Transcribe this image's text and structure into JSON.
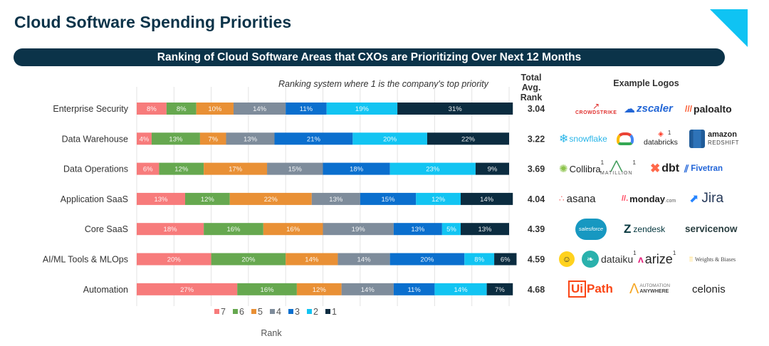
{
  "header": {
    "title": "Cloud Software Spending Priorities",
    "banner": "Ranking of Cloud Software Areas that CXOs are Prioritizing  Over Next 12 Months",
    "subtitle": "Ranking system where  1 is the company's top priority",
    "col_rank": "Total Avg. Rank",
    "col_logos": "Example Logos",
    "accent_color": "#0fc3f3",
    "banner_color": "#0b3349"
  },
  "chart_data": {
    "type": "bar",
    "orientation": "horizontal",
    "stacked": "100%",
    "title": "Ranking of Cloud Software Areas that CXOs are Prioritizing Over Next 12 Months",
    "subtitle": "Ranking system where 1 is the company's top priority",
    "xlabel": "Rank",
    "xlim": [
      0,
      100
    ],
    "grid": "vertical",
    "legend": "bottom",
    "categories": [
      "Enterprise Security",
      "Data Warehouse",
      "Data Operations",
      "Application SaaS",
      "Core SaaS",
      "AI/ML Tools & MLOps",
      "Automation"
    ],
    "series": [
      {
        "name": "7",
        "color": "#f77b7b",
        "values": [
          8,
          4,
          6,
          13,
          18,
          20,
          27
        ]
      },
      {
        "name": "6",
        "color": "#66a84f",
        "values": [
          8,
          13,
          12,
          12,
          16,
          20,
          16
        ]
      },
      {
        "name": "5",
        "color": "#e99035",
        "values": [
          10,
          7,
          17,
          22,
          16,
          14,
          12
        ]
      },
      {
        "name": "4",
        "color": "#7e8c9b",
        "values": [
          14,
          13,
          15,
          13,
          19,
          14,
          14
        ]
      },
      {
        "name": "3",
        "color": "#0a6fce",
        "values": [
          11,
          21,
          18,
          15,
          13,
          20,
          11
        ]
      },
      {
        "name": "2",
        "color": "#12c4f2",
        "values": [
          19,
          20,
          23,
          12,
          5,
          8,
          14
        ]
      },
      {
        "name": "1",
        "color": "#0b2c40",
        "values": [
          31,
          22,
          9,
          14,
          13,
          6,
          7
        ]
      }
    ],
    "avg_rank": [
      "3.04",
      "3.22",
      "3.69",
      "4.04",
      "4.39",
      "4.59",
      "4.68"
    ]
  },
  "logos": [
    [
      {
        "name": "CrowdStrike",
        "text": "CROWDSTRIKE",
        "color": "#e0312f"
      },
      {
        "name": "Zscaler",
        "text": "zscaler",
        "color": "#2266d6"
      },
      {
        "name": "Palo Alto Networks",
        "text": "paloalto",
        "color": "#222222"
      }
    ],
    [
      {
        "name": "Snowflake",
        "text": "snowflake",
        "color": "#29b5e8"
      },
      {
        "name": "Google Cloud",
        "text": "",
        "color": "#4285f4"
      },
      {
        "name": "Databricks",
        "text": "databricks",
        "sup": "1",
        "color": "#222222"
      },
      {
        "name": "Amazon Redshift",
        "text": "amazon",
        "subtext": "REDSHIFT",
        "color": "#2e73b8"
      }
    ],
    [
      {
        "name": "Collibra",
        "text": "Collibra",
        "sup": "1",
        "color": "#222222"
      },
      {
        "name": "Matillion",
        "text": "MATILLION",
        "sup": "1",
        "color": "#3f9c5a"
      },
      {
        "name": "dbt",
        "text": "dbt",
        "color": "#222222"
      },
      {
        "name": "Fivetran",
        "text": "Fivetran",
        "color": "#1f63d8"
      }
    ],
    [
      {
        "name": "Asana",
        "text": "asana",
        "color": "#222222"
      },
      {
        "name": "monday.com",
        "text": "monday",
        "subtext": ".com",
        "color": "#222222"
      },
      {
        "name": "Jira",
        "text": "Jira",
        "color": "#253858"
      }
    ],
    [
      {
        "name": "Salesforce",
        "text": "salesforce",
        "color": "#1798c1"
      },
      {
        "name": "Zendesk",
        "text": "zendesk",
        "color": "#03363d"
      },
      {
        "name": "ServiceNow",
        "text": "servicenow",
        "color": "#293e40"
      }
    ],
    [
      {
        "name": "Hugging Face",
        "text": "",
        "color": "#ffd21e"
      },
      {
        "name": "Dataiku",
        "text": "dataiku",
        "sup": "1",
        "color": "#2ab1ac"
      },
      {
        "name": "Arize",
        "text": "arize",
        "sup": "1",
        "color": "#222222"
      },
      {
        "name": "Weights & Biases",
        "text": "Weights & Biases",
        "color": "#444444"
      }
    ],
    [
      {
        "name": "UiPath",
        "text": "Path",
        "prefix": "Ui",
        "color": "#fa4616"
      },
      {
        "name": "Automation Anywhere",
        "text": "AUTOMATION",
        "subtext": "ANYWHERE",
        "color": "#f5a623"
      },
      {
        "name": "Celonis",
        "text": "celonis",
        "color": "#222222"
      }
    ]
  ]
}
